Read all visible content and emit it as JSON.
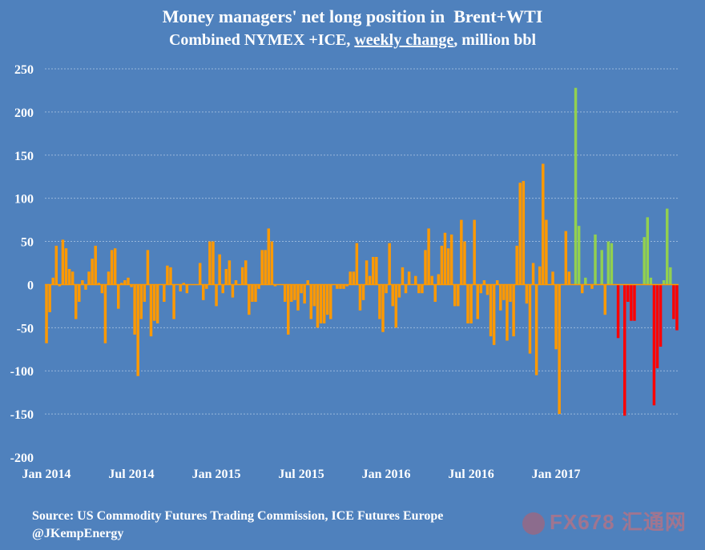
{
  "title": "Money managers' net long position in  Brent+WTI",
  "subtitle": {
    "prefix": "Combined NYMEX +ICE, ",
    "underlined": "weekly change",
    "suffix": ", million bbl"
  },
  "source_line1": "Source: US Commodity Futures Trading Commission, ICE Futures Europe",
  "source_line2": "@JKempEnergy",
  "watermark": "FX678 汇通网",
  "colors": {
    "background": "#4f81bd",
    "default_bar": "#ff9900",
    "positive_highlight": "#92d050",
    "negative_highlight": "#ff0000",
    "grid": "#9ab8dc"
  },
  "chart_data": {
    "type": "bar",
    "ylim": [
      -200,
      250
    ],
    "yticks": [
      250,
      200,
      150,
      100,
      50,
      0,
      -50,
      -100,
      -150,
      -200
    ],
    "xtick_labels": [
      {
        "label": "Jan 2014",
        "week_index": 0
      },
      {
        "label": "Jul 2014",
        "week_index": 26
      },
      {
        "label": "Jan 2015",
        "week_index": 52
      },
      {
        "label": "Jul 2015",
        "week_index": 78
      },
      {
        "label": "Jan 2016",
        "week_index": 104
      },
      {
        "label": "Jul 2016",
        "week_index": 130
      },
      {
        "label": "Jan 2017",
        "week_index": 156
      }
    ],
    "series": [
      {
        "values": [
          -68,
          -32,
          8,
          45,
          -2,
          52,
          42,
          18,
          15,
          -40,
          -20,
          5,
          -6,
          15,
          30,
          45,
          2,
          -10,
          -68,
          15,
          40,
          42,
          -28,
          2,
          5,
          8,
          -3,
          -58,
          -106,
          -40,
          -20,
          40,
          -60,
          -42,
          -45,
          0,
          -20,
          22,
          20,
          -40,
          0,
          -8,
          2,
          -10,
          0,
          0,
          0,
          25,
          -18,
          -5,
          50,
          50,
          -25,
          35,
          -10,
          18,
          28,
          -15,
          5,
          0,
          20,
          28,
          -35,
          -20,
          -20,
          -5,
          40,
          40,
          65,
          50,
          -2,
          0,
          0,
          -20,
          -58,
          -20,
          -18,
          -30,
          -10,
          -22,
          5,
          -40,
          -25,
          -50,
          -45,
          -45,
          -35,
          -40,
          0,
          -5,
          -5,
          -5,
          -2,
          15,
          15,
          48,
          -30,
          -18,
          28,
          10,
          32,
          32,
          -40,
          -55,
          -10,
          48,
          -25,
          -50,
          -15,
          20,
          -10,
          15,
          0,
          10,
          -10,
          -10,
          40,
          65,
          10,
          -20,
          12,
          45,
          60,
          42,
          58,
          -25,
          -25,
          75,
          50,
          -45,
          -45,
          75,
          -40,
          -10,
          5,
          -12,
          -60,
          -70,
          5,
          -30,
          -18,
          -65,
          -20,
          -60,
          45,
          118,
          120,
          -22,
          -80,
          25,
          -105,
          21,
          140,
          75,
          0,
          15,
          -75,
          -150,
          0,
          62,
          15,
          0,
          228,
          68,
          -10,
          8,
          0,
          -5,
          58,
          0,
          40,
          -35,
          50,
          48,
          0,
          -62,
          0,
          -152,
          -20,
          -42,
          -42,
          0,
          0,
          55,
          78,
          8,
          -140,
          -97,
          -72,
          5,
          88,
          20,
          -40,
          -53
        ]
      }
    ],
    "color_segments": [
      {
        "from_week": 0,
        "to_week": 160,
        "color": "default"
      },
      {
        "from_week": 161,
        "to_week": 171,
        "color": "mixed: positive green, negative orange"
      },
      {
        "from_week": 172,
        "to_week": 197,
        "color": "mixed: positive green, negative red"
      }
    ]
  }
}
